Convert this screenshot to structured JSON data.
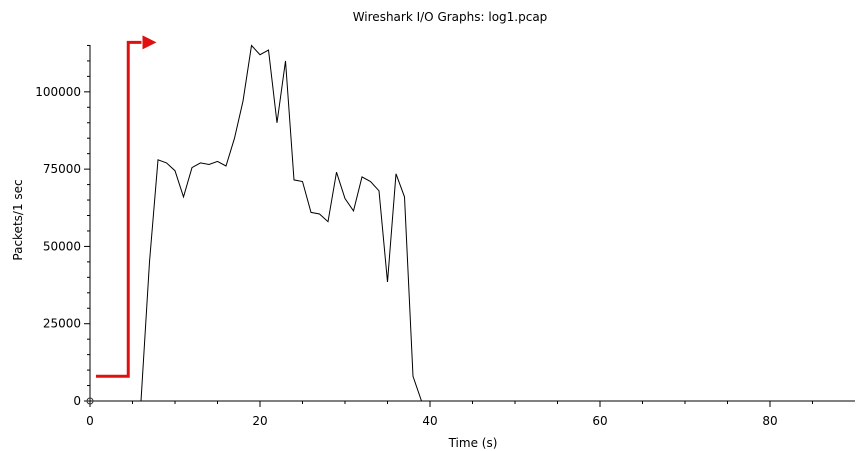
{
  "chart_data": {
    "type": "line",
    "title": "Wireshark I/O Graphs: log1.pcap",
    "xlabel": "Time (s)",
    "ylabel": "Packets/1 sec",
    "xlim": [
      0,
      90
    ],
    "ylim": [
      0,
      120000
    ],
    "xticks": [
      0,
      20,
      40,
      60,
      80
    ],
    "xtick_labels": [
      "0",
      "20",
      "40",
      "60",
      "80"
    ],
    "yticks": [
      0,
      25000,
      50000,
      75000,
      100000
    ],
    "ytick_labels": [
      "0",
      "25000",
      "50000",
      "75000",
      "100000"
    ],
    "grid": false,
    "series": [
      {
        "color": "#000000",
        "x": [
          0,
          1,
          2,
          3,
          4,
          5,
          6,
          7,
          8,
          9,
          10,
          11,
          12,
          13,
          14,
          15,
          16,
          17,
          18,
          19,
          20,
          21,
          22,
          23,
          24,
          25,
          26,
          27,
          28,
          29,
          30,
          31,
          32,
          33,
          34,
          35,
          36,
          37,
          38,
          39,
          40,
          41,
          50,
          60,
          70,
          80,
          90
        ],
        "y": [
          0,
          0,
          0,
          0,
          0,
          0,
          0,
          45000,
          78000,
          77000,
          74500,
          66000,
          75500,
          77000,
          76500,
          77500,
          76000,
          85000,
          97000,
          115000,
          112000,
          113500,
          90000,
          110000,
          71500,
          71000,
          61000,
          60500,
          58000,
          74000,
          65500,
          61500,
          72500,
          71000,
          68000,
          38500,
          73500,
          66000,
          8000,
          0,
          0,
          0,
          0,
          0,
          0,
          0,
          0
        ]
      }
    ],
    "annotations": [
      {
        "type": "arrow",
        "color": "#e01010",
        "points": [
          [
            0.7,
            8000
          ],
          [
            4.5,
            8000
          ],
          [
            4.5,
            116000
          ],
          [
            7.0,
            116000
          ]
        ]
      }
    ]
  }
}
